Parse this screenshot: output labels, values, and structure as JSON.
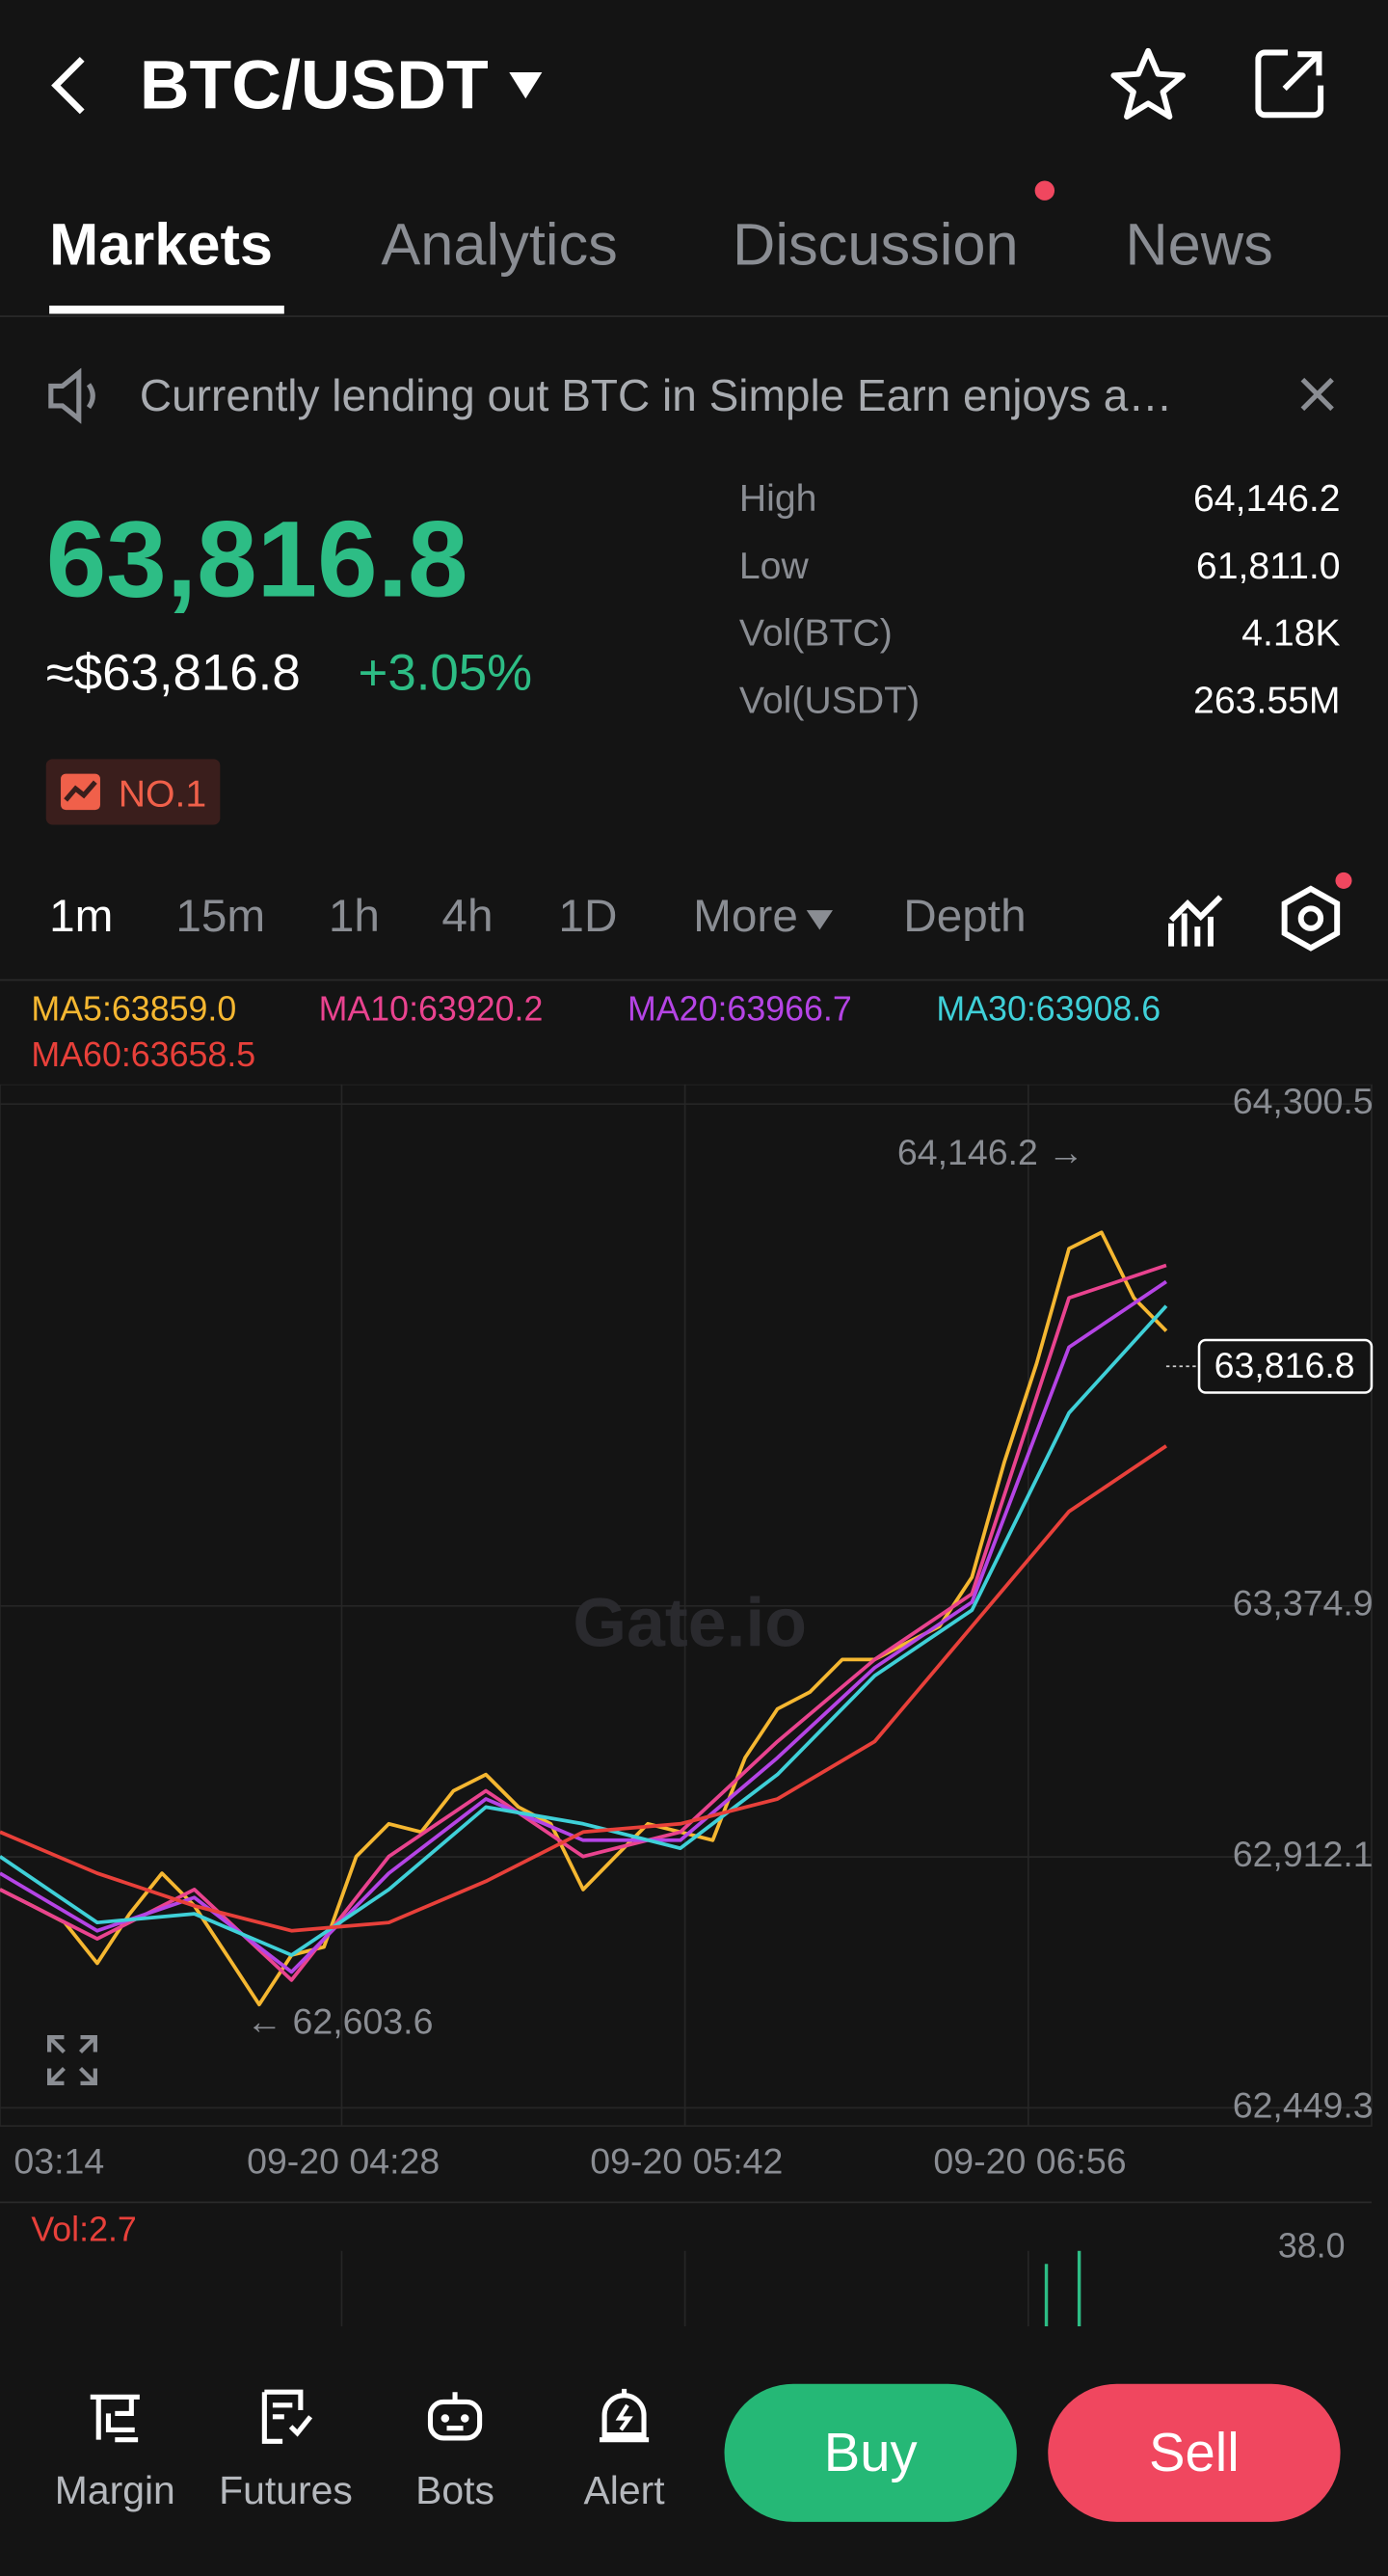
{
  "header": {
    "pair": "BTC/USDT"
  },
  "tabs": [
    "Markets",
    "Analytics",
    "Discussion",
    "News"
  ],
  "banner": {
    "text": "Currently lending out BTC in Simple Earn enjoys a…"
  },
  "ticker": {
    "last": "63,816.8",
    "usd": "≈$63,816.8",
    "change": "+3.05%",
    "badge": "NO.1",
    "stats": [
      {
        "label": "High",
        "value": "64,146.2"
      },
      {
        "label": "Low",
        "value": "61,811.0"
      },
      {
        "label": "Vol(BTC)",
        "value": "4.18K"
      },
      {
        "label": "Vol(USDT)",
        "value": "263.55M"
      }
    ]
  },
  "intervals": [
    "1m",
    "15m",
    "1h",
    "4h",
    "1D",
    "More",
    "Depth"
  ],
  "chart_data": {
    "type": "line",
    "watermark": "Gate.io",
    "ylim": [
      62449.3,
      64300.5
    ],
    "yticks": [
      {
        "value": 62449.3,
        "label": "62,449.3"
      },
      {
        "value": 62912.1,
        "label": "62,912.1"
      },
      {
        "value": 63374.9,
        "label": "63,374.9"
      },
      {
        "value": 64300.5,
        "label": "64,300.5"
      }
    ],
    "x_labels": [
      "03:14",
      "09-20 04:28",
      "09-20 05:42",
      "09-20 06:56"
    ],
    "grid": true,
    "series": [
      {
        "name": "MA5:63859.0",
        "color": "#f5b731",
        "values": [
          62852,
          62822,
          62791,
          62716,
          62807,
          62882,
          62822,
          62731,
          62640,
          62731,
          62746,
          62913,
          62973,
          62958,
          63034,
          63064,
          63004,
          62973,
          62852,
          62913,
          62973,
          62958,
          62943,
          63095,
          63185,
          63216,
          63276,
          63276,
          63307,
          63337,
          63428,
          63640,
          63822,
          64034,
          64064,
          63943,
          63882
        ]
      },
      {
        "name": "MA10:63920.2",
        "color": "#e9438f",
        "values": [
          62852,
          62761,
          62852,
          62685,
          62913,
          63034,
          62913,
          62958,
          63125,
          63276,
          63397,
          63943,
          64003
        ]
      },
      {
        "name": "MA20:63966.7",
        "color": "#b544e5",
        "values": [
          62882,
          62776,
          62837,
          62700,
          62882,
          63019,
          62943,
          62943,
          63095,
          63261,
          63382,
          63852,
          63973
        ]
      },
      {
        "name": "MA30:63908.6",
        "color": "#3fd0d8",
        "values": [
          62913,
          62791,
          62807,
          62731,
          62852,
          63004,
          62973,
          62928,
          63064,
          63246,
          63367,
          63731,
          63928
        ]
      },
      {
        "name": "MA60:63658.5",
        "color": "#e8403a",
        "values": [
          62958,
          62882,
          62822,
          62776,
          62791,
          62867,
          62958,
          62973,
          63019,
          63125,
          63337,
          63549,
          63670
        ]
      }
    ],
    "high": {
      "value": 64146.2,
      "label": "64,146.2 →"
    },
    "low": {
      "value": 62603.6,
      "label": "← 62,603.6"
    },
    "last": {
      "value": 63816.8,
      "label": "63,816.8"
    }
  },
  "volume": {
    "label": "Vol:2.7",
    "max": "38.0"
  },
  "nav": [
    "Margin",
    "Futures",
    "Bots",
    "Alert"
  ],
  "buy": "Buy",
  "sell": "Sell"
}
